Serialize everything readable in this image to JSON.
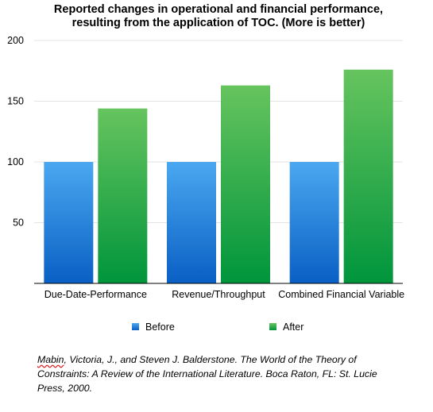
{
  "chart_data": {
    "type": "bar",
    "title_lines": [
      "Reported changes in operational and financial performance,",
      "resulting from the application of TOC. (More is better)"
    ],
    "categories": [
      "Due-Date-Performance",
      "Revenue/Throughput",
      "Combined Financial Variable"
    ],
    "series": [
      {
        "name": "Before",
        "values": [
          100,
          100,
          100
        ],
        "color_top": "#4aa8f0",
        "color_bottom": "#0a5fc4"
      },
      {
        "name": "After",
        "values": [
          144,
          163,
          176
        ],
        "color_top": "#66c45e",
        "color_bottom": "#00953c"
      }
    ],
    "yticks": [
      50,
      100,
      150,
      200
    ],
    "ylim": [
      0,
      200
    ],
    "grid": true,
    "legend_position": "bottom"
  },
  "citation": {
    "first_word": "Mabin",
    "rest": ", Victoria, J., and Steven J. Balderstone. The World of the Theory of Constraints: A Review of the International Literature. Boca Raton, FL: St. Lucie Press, 2000."
  }
}
